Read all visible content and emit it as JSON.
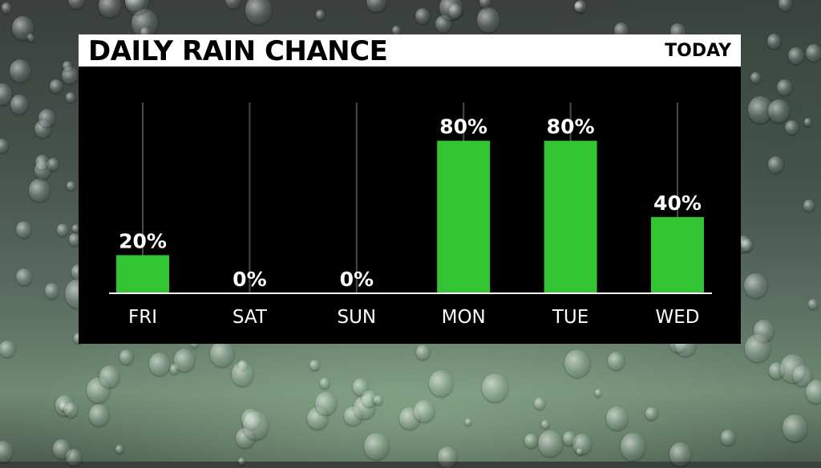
{
  "header": {
    "title": "DAILY RAIN CHANCE",
    "period": "TODAY"
  },
  "colors": {
    "bar": "#33c433",
    "panel": "#000000",
    "guide_line": "#4a4a4a",
    "baseline": "#ffffff",
    "text": "#ffffff"
  },
  "chart_data": {
    "type": "bar",
    "title": "DAILY RAIN CHANCE",
    "subtitle": "TODAY",
    "categories": [
      "FRI",
      "SAT",
      "SUN",
      "MON",
      "TUE",
      "WED"
    ],
    "values": [
      20,
      0,
      0,
      80,
      80,
      40
    ],
    "data_labels": [
      "20%",
      "0%",
      "0%",
      "80%",
      "80%",
      "40%"
    ],
    "unit": "%",
    "ylim": [
      0,
      100
    ],
    "grid": false,
    "legend": "none"
  }
}
